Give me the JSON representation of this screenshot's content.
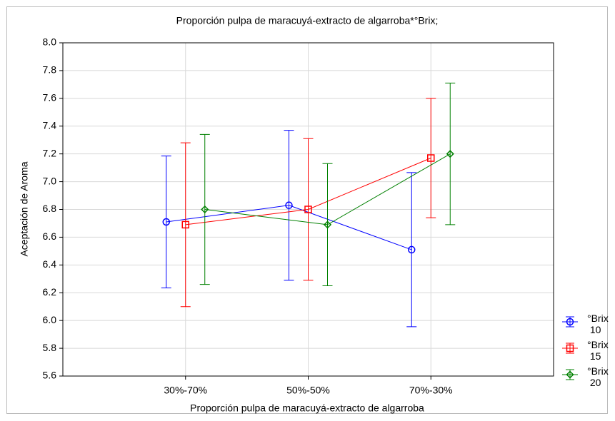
{
  "chart_data": {
    "type": "errorbar-line",
    "title": "Proporción pulpa de maracuyá-extracto de algarroba*°Brix;",
    "x_label": "Proporción pulpa de maracuyá-extracto de algarroba",
    "y_label": "Aceptación de Aroma",
    "categories": [
      "30%-70%",
      "50%-50%",
      "70%-30%"
    ],
    "ylim": [
      5.6,
      8.0
    ],
    "yticks": [
      5.6,
      5.8,
      {
        "value": 6.0,
        "label": "6.0"
      },
      6.2,
      6.4,
      6.6,
      6.8,
      {
        "value": 7.0,
        "label": "7.0"
      },
      7.2,
      7.4,
      7.6,
      7.8,
      {
        "value": 8.0,
        "label": "8.0"
      }
    ],
    "grid": true,
    "legend": "right",
    "series": [
      {
        "name": "°Brix 10",
        "color": "#0000ff",
        "marker": "circle",
        "values": [
          6.71,
          6.83,
          6.51
        ],
        "errors": [
          0.475,
          0.54,
          0.555
        ]
      },
      {
        "name": "°Brix 15",
        "color": "#ff0000",
        "marker": "square",
        "values": [
          6.69,
          6.8,
          7.17
        ],
        "errors": [
          0.59,
          0.51,
          0.43
        ]
      },
      {
        "name": "°Brix 20",
        "color": "#008000",
        "marker": "diamond",
        "values": [
          6.8,
          6.69,
          7.2
        ],
        "errors": [
          0.54,
          0.44,
          0.51
        ]
      }
    ]
  }
}
